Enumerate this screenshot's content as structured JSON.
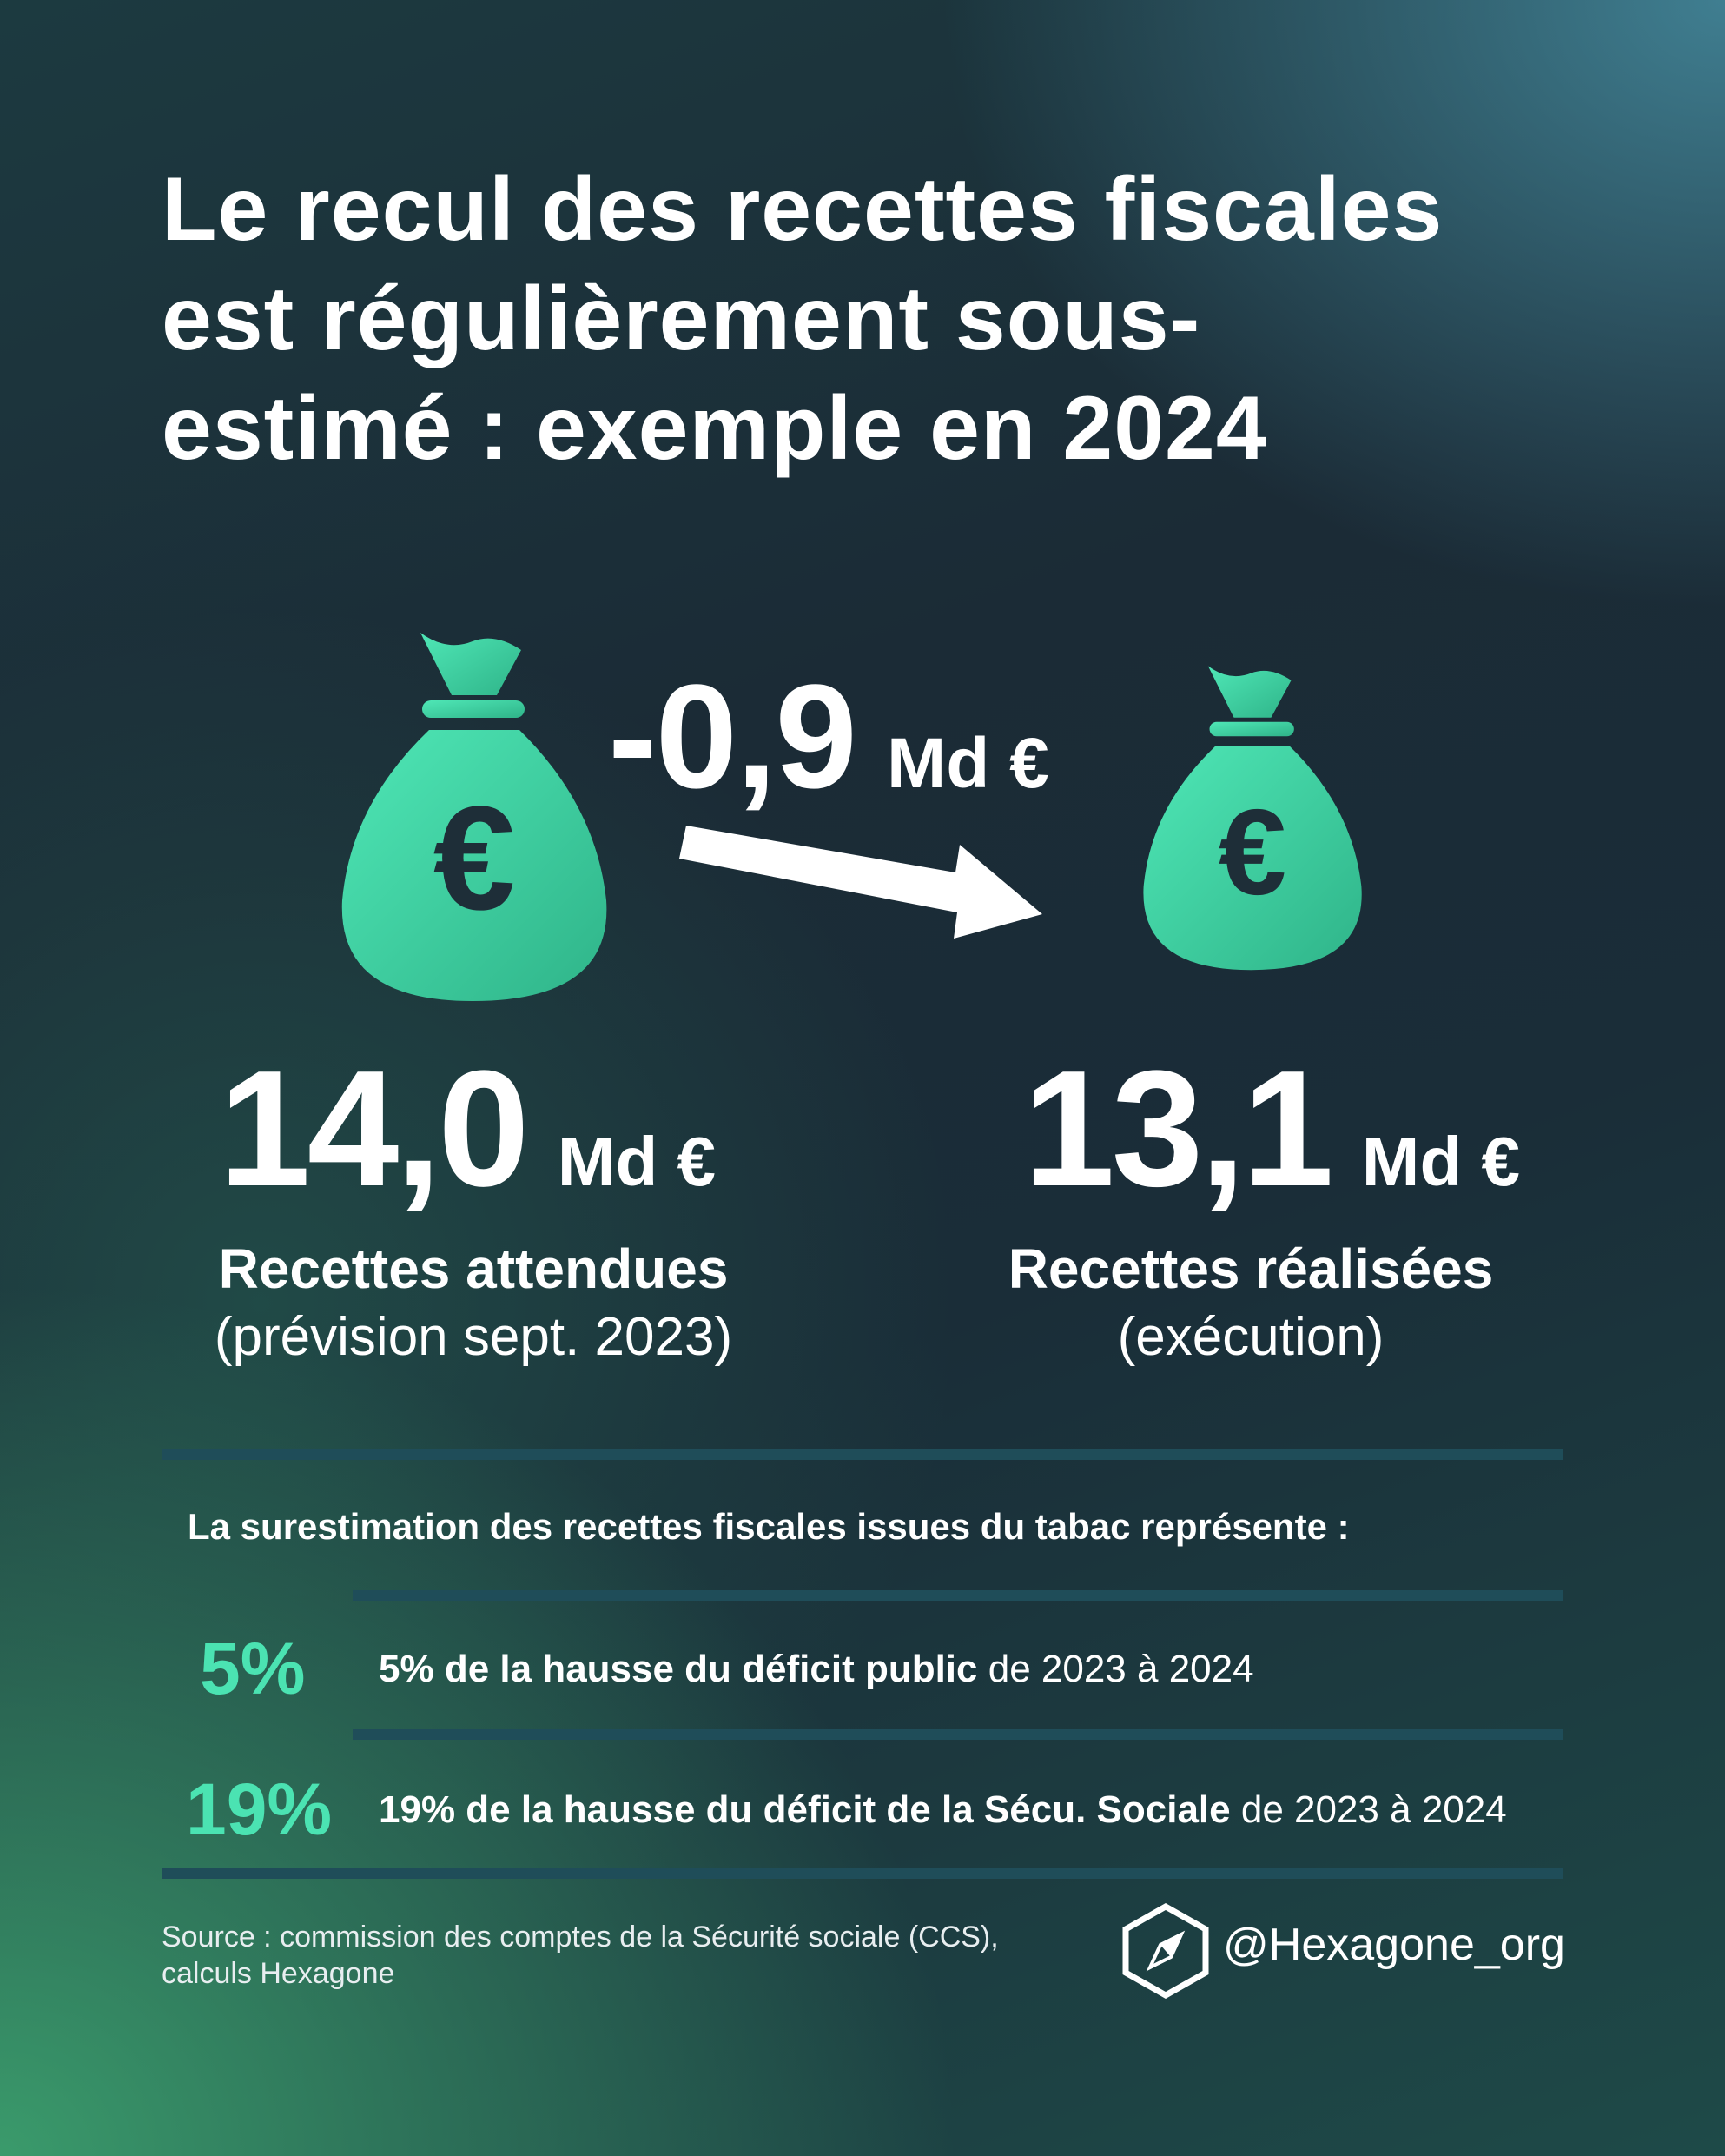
{
  "title_lines": [
    "Le recul des recettes fiscales",
    "est régulièrement sous-",
    "estimé : exemple en 2024"
  ],
  "difference": {
    "value": "-0,9",
    "unit": "Md €"
  },
  "expected": {
    "value": "14,0",
    "unit": "Md €",
    "label": "Recettes attendues",
    "sublabel": "(prévision sept. 2023)"
  },
  "actual": {
    "value": "13,1",
    "unit": "Md €",
    "label": "Recettes réalisées",
    "sublabel": "(exécution)"
  },
  "icons": {
    "bag": "money-bag-euro-icon",
    "arrow": "arrow-right-down-icon",
    "logo": "hexagon-compass-logo"
  },
  "bag_symbol": "€",
  "intro": "La surestimation des recettes fiscales issues du tabac représente :",
  "rows": [
    {
      "pct": "5%",
      "bold": "5% de la hausse du déficit public",
      "rest": " de 2023 à 2024"
    },
    {
      "pct": "19%",
      "bold": "19% de la hausse du déficit de la Sécu. Sociale",
      "rest": " de 2023 à 2024"
    }
  ],
  "source_lines": [
    "Source : commission des comptes de la Sécurité sociale (CCS),",
    "calculs Hexagone"
  ],
  "handle": "@Hexagone_org",
  "colors": {
    "accent": "#4be3b2",
    "bag_dark": "#1e2e38",
    "rule": "#1f4d59"
  }
}
